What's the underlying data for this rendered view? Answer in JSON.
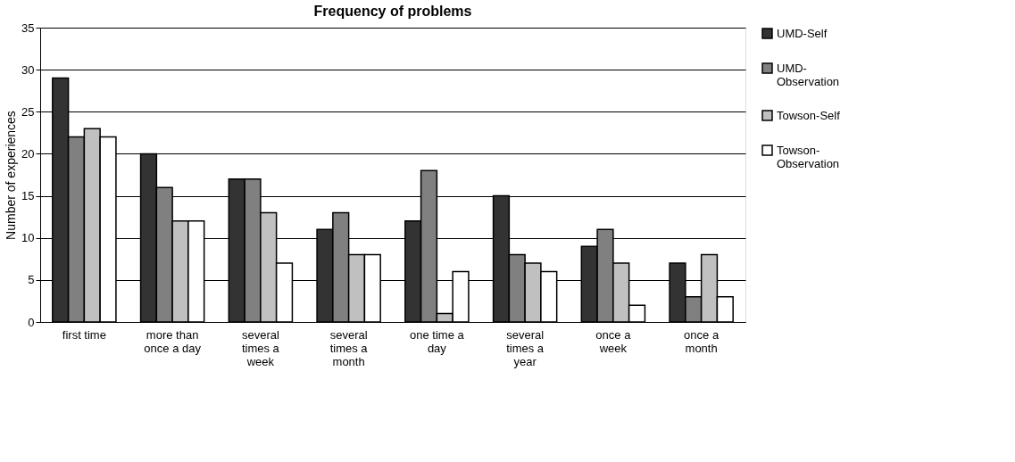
{
  "chart_data": {
    "type": "bar",
    "title": "Frequency of problems",
    "ylabel": "Number of experiences",
    "categories": [
      "first time",
      "more than once a day",
      "several times a week",
      "several times a month",
      "one time a day",
      "several times a year",
      "once a week",
      "once a month"
    ],
    "series": [
      {
        "name": "UMD-Self",
        "color": "#333333",
        "values": [
          29,
          20,
          17,
          11,
          12,
          15,
          9,
          7
        ]
      },
      {
        "name": "UMD-Observation",
        "color": "#808080",
        "values": [
          22,
          16,
          17,
          13,
          18,
          8,
          11,
          3
        ]
      },
      {
        "name": "Towson-Self",
        "color": "#c0c0c0",
        "values": [
          23,
          12,
          13,
          8,
          1,
          7,
          7,
          8
        ]
      },
      {
        "name": "Towson-Observation",
        "color": "#ffffff",
        "values": [
          22,
          12,
          7,
          8,
          6,
          6,
          2,
          3
        ]
      }
    ],
    "ylim": [
      0,
      35
    ],
    "yticks": [
      0,
      5,
      10,
      15,
      20,
      25,
      30,
      35
    ],
    "grid": "y",
    "legend": "right"
  }
}
